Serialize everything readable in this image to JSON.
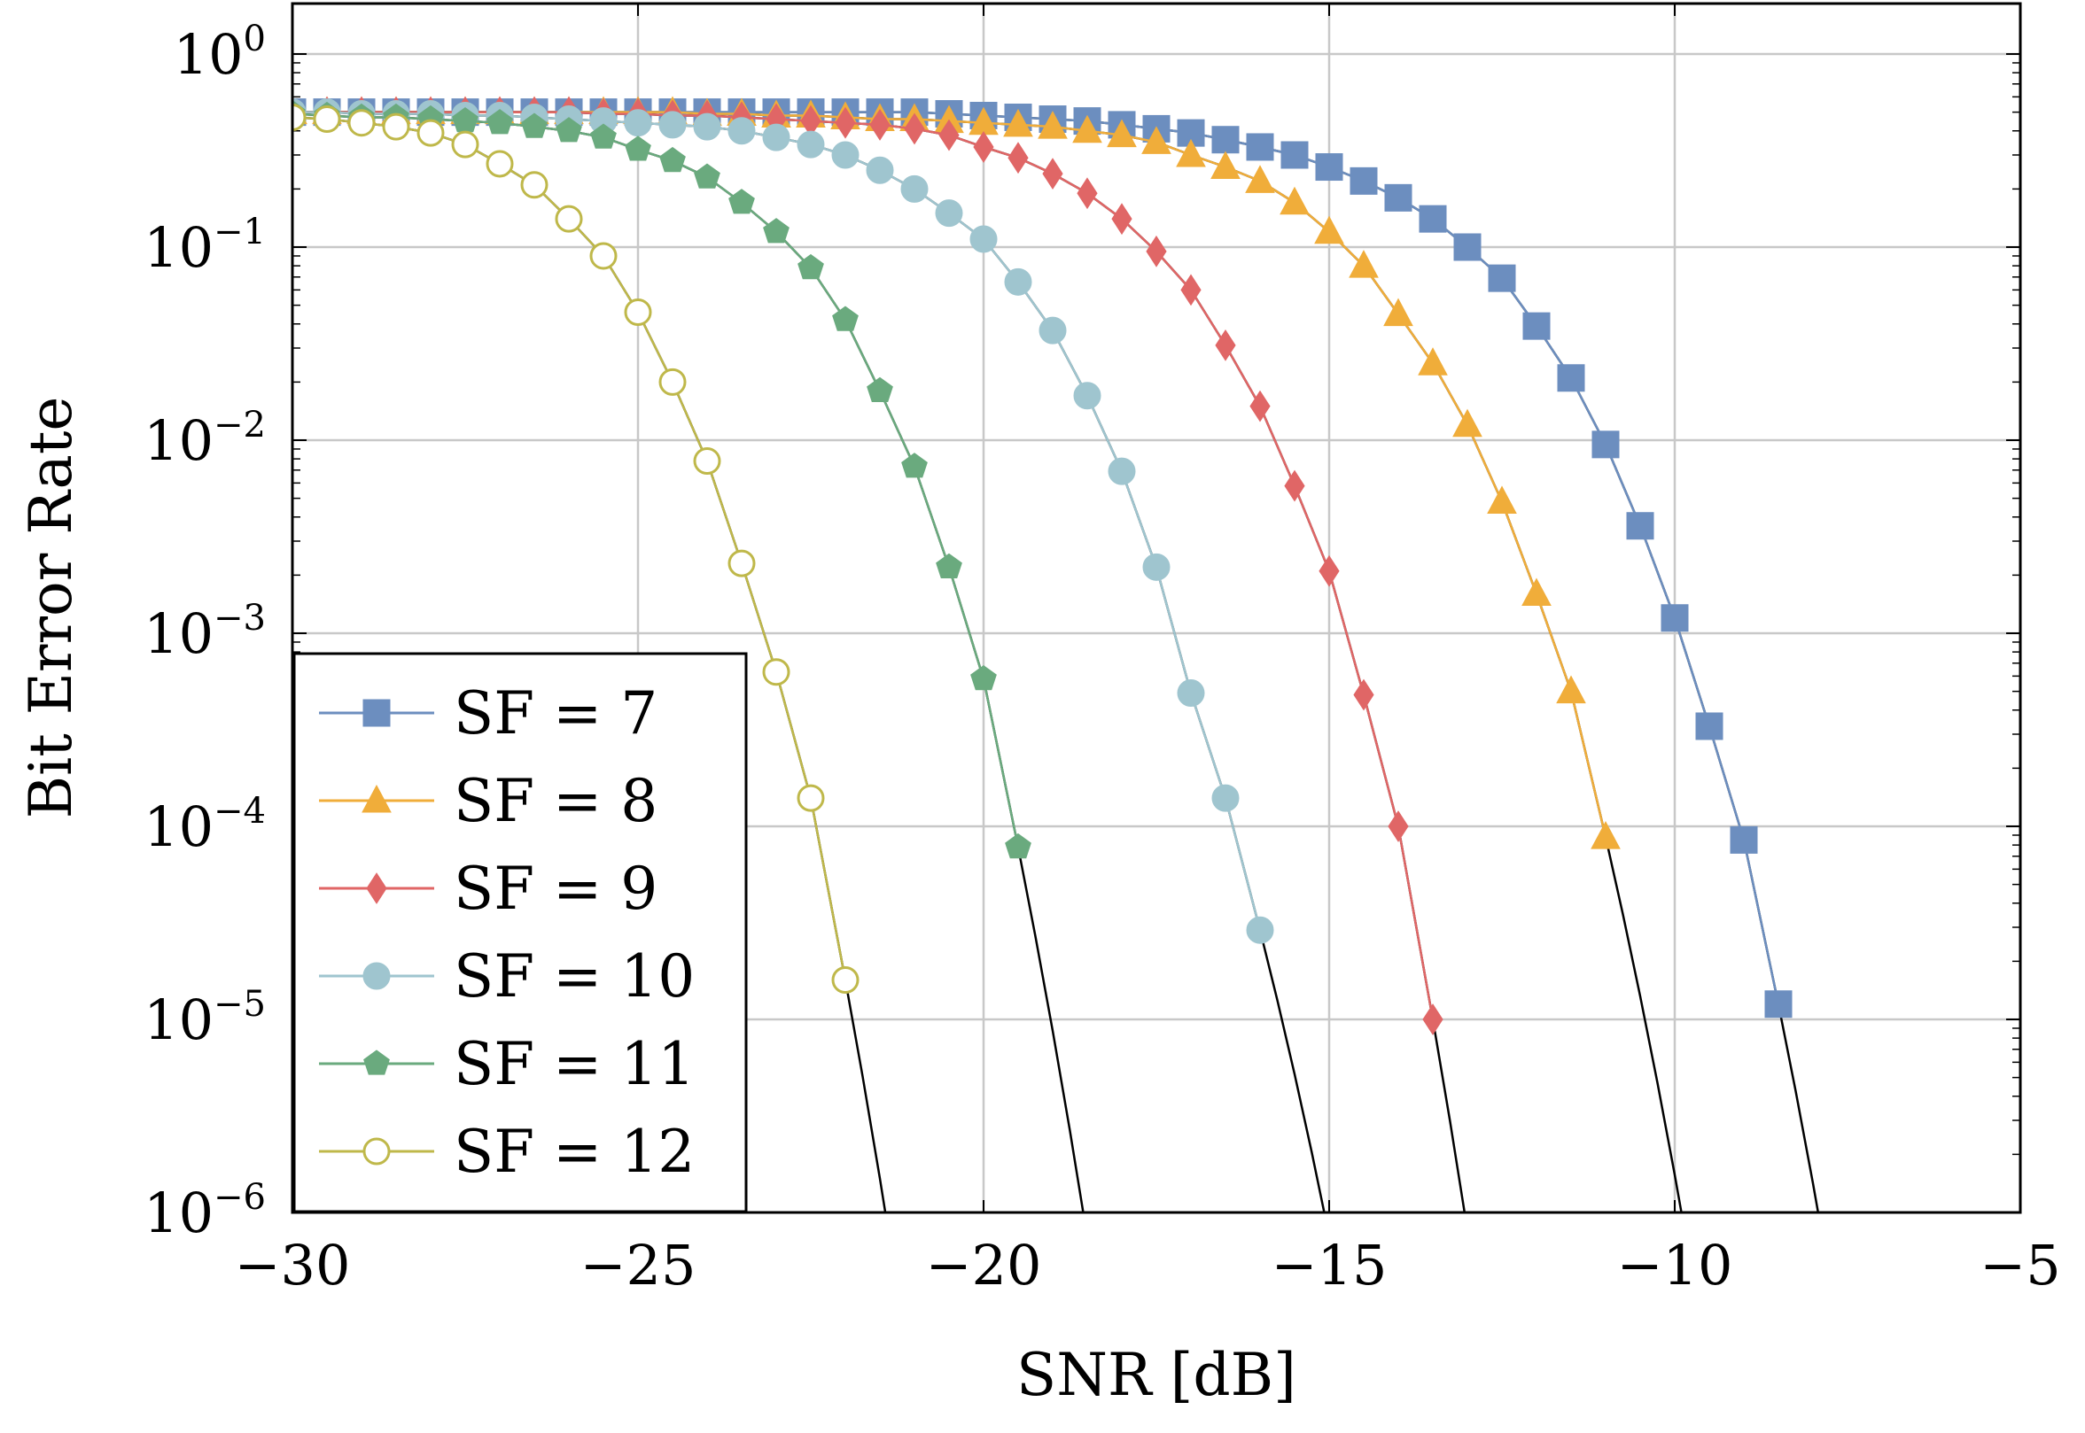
{
  "chart_data": {
    "type": "line",
    "title": "",
    "xlabel": "SNR [dB]",
    "ylabel": "Bit Error Rate",
    "xlim": [
      -30,
      -5
    ],
    "ylim": [
      1e-06,
      2
    ],
    "yscale": "log",
    "grid": true,
    "legend_position": "bottom-left",
    "x_ticks": [
      -30,
      -25,
      -20,
      -15,
      -10,
      -5
    ],
    "x_tick_labels": [
      "−30",
      "−25",
      "−20",
      "−15",
      "−10",
      "−5"
    ],
    "y_ticks": [
      {
        "base": "10",
        "exp": "0",
        "value": 1
      },
      {
        "base": "10",
        "exp": "−1",
        "value": 0.1
      },
      {
        "base": "10",
        "exp": "−2",
        "value": 0.01
      },
      {
        "base": "10",
        "exp": "−3",
        "value": 0.001
      },
      {
        "base": "10",
        "exp": "−4",
        "value": 0.0001
      },
      {
        "base": "10",
        "exp": "−5",
        "value": 1e-05
      },
      {
        "base": "10",
        "exp": "−6",
        "value": 1e-06
      }
    ],
    "series": [
      {
        "name": "SF = 7",
        "color": "#6c8ebf",
        "marker": "square",
        "x": [
          -30,
          -29.5,
          -29,
          -28.5,
          -28,
          -27.5,
          -27,
          -26.5,
          -26,
          -25.5,
          -25,
          -24.5,
          -24,
          -23.5,
          -23,
          -22.5,
          -22,
          -21.5,
          -21,
          -20.5,
          -20,
          -19.5,
          -19,
          -18.5,
          -18,
          -17.5,
          -17,
          -16.5,
          -16,
          -15.5,
          -15,
          -14.5,
          -14,
          -13.5,
          -13,
          -12.5,
          -12,
          -11.5,
          -11,
          -10.5,
          -10,
          -9.5,
          -9,
          -8.5,
          -8
        ],
        "y": [
          0.5,
          0.5,
          0.5,
          0.5,
          0.5,
          0.5,
          0.5,
          0.5,
          0.5,
          0.5,
          0.5,
          0.5,
          0.5,
          0.5,
          0.5,
          0.5,
          0.5,
          0.5,
          0.5,
          0.49,
          0.48,
          0.47,
          0.46,
          0.45,
          0.43,
          0.41,
          0.39,
          0.36,
          0.33,
          0.3,
          0.26,
          0.22,
          0.18,
          0.14,
          0.1,
          0.069,
          0.039,
          0.021,
          0.0095,
          0.0036,
          0.0012,
          0.00033,
          8.5e-05,
          1.2e-05,
          0
        ]
      },
      {
        "name": "SF = 8",
        "color": "#f0ad3a",
        "marker": "triangle",
        "x": [
          -30,
          -29.5,
          -29,
          -28.5,
          -28,
          -27.5,
          -27,
          -26.5,
          -26,
          -25.5,
          -25,
          -24.5,
          -24,
          -23.5,
          -23,
          -22.5,
          -22,
          -21.5,
          -21,
          -20.5,
          -20,
          -19.5,
          -19,
          -18.5,
          -18,
          -17.5,
          -17,
          -16.5,
          -16,
          -15.5,
          -15,
          -14.5,
          -14,
          -13.5,
          -13,
          -12.5,
          -12,
          -11.5,
          -11
        ],
        "y": [
          0.5,
          0.5,
          0.5,
          0.5,
          0.5,
          0.5,
          0.5,
          0.5,
          0.5,
          0.5,
          0.5,
          0.5,
          0.49,
          0.49,
          0.48,
          0.48,
          0.47,
          0.46,
          0.46,
          0.45,
          0.44,
          0.43,
          0.42,
          0.4,
          0.38,
          0.35,
          0.3,
          0.26,
          0.22,
          0.17,
          0.12,
          0.08,
          0.045,
          0.025,
          0.012,
          0.0048,
          0.0016,
          0.0005,
          8.8e-05
        ]
      },
      {
        "name": "SF = 9",
        "color": "#e06666",
        "marker": "diamond",
        "x": [
          -30,
          -29.5,
          -29,
          -28.5,
          -28,
          -27.5,
          -27,
          -26.5,
          -26,
          -25.5,
          -25,
          -24.5,
          -24,
          -23.5,
          -23,
          -22.5,
          -22,
          -21.5,
          -21,
          -20.5,
          -20,
          -19.5,
          -19,
          -18.5,
          -18,
          -17.5,
          -17,
          -16.5,
          -16,
          -15.5,
          -15,
          -14.5,
          -14,
          -13.5
        ],
        "y": [
          0.5,
          0.5,
          0.5,
          0.5,
          0.5,
          0.5,
          0.5,
          0.5,
          0.5,
          0.49,
          0.49,
          0.48,
          0.48,
          0.47,
          0.46,
          0.45,
          0.44,
          0.43,
          0.41,
          0.38,
          0.33,
          0.29,
          0.24,
          0.19,
          0.14,
          0.095,
          0.06,
          0.031,
          0.015,
          0.0058,
          0.0021,
          0.00048,
          0.0001,
          1e-05
        ]
      },
      {
        "name": "SF = 10",
        "color": "#9fc5cf",
        "marker": "circle",
        "x": [
          -30,
          -29.5,
          -29,
          -28.5,
          -28,
          -27.5,
          -27,
          -26.5,
          -26,
          -25.5,
          -25,
          -24.5,
          -24,
          -23.5,
          -23,
          -22.5,
          -22,
          -21.5,
          -21,
          -20.5,
          -20,
          -19.5,
          -19,
          -18.5,
          -18,
          -17.5,
          -17,
          -16.5,
          -16
        ],
        "y": [
          0.5,
          0.5,
          0.49,
          0.49,
          0.49,
          0.48,
          0.48,
          0.47,
          0.46,
          0.45,
          0.44,
          0.43,
          0.42,
          0.4,
          0.37,
          0.34,
          0.3,
          0.25,
          0.2,
          0.15,
          0.11,
          0.066,
          0.037,
          0.017,
          0.0069,
          0.0022,
          0.00049,
          0.00014,
          2.9e-05
        ]
      },
      {
        "name": "SF = 11",
        "color": "#6aaa7e",
        "marker": "pentagon",
        "x": [
          -30,
          -29.5,
          -29,
          -28.5,
          -28,
          -27.5,
          -27,
          -26.5,
          -26,
          -25.5,
          -25,
          -24.5,
          -24,
          -23.5,
          -23,
          -22.5,
          -22,
          -21.5,
          -21,
          -20.5,
          -20,
          -19.5
        ],
        "y": [
          0.49,
          0.48,
          0.47,
          0.47,
          0.46,
          0.45,
          0.44,
          0.42,
          0.4,
          0.37,
          0.32,
          0.28,
          0.23,
          0.17,
          0.12,
          0.078,
          0.042,
          0.018,
          0.0073,
          0.0022,
          0.00058,
          7.8e-05
        ]
      },
      {
        "name": "SF = 12",
        "color": "#bfb84a",
        "marker": "open-circle",
        "x": [
          -30,
          -29.5,
          -29,
          -28.5,
          -28,
          -27.5,
          -27,
          -26.5,
          -26,
          -25.5,
          -25,
          -24.5,
          -24,
          -23.5,
          -23,
          -22.5,
          -22
        ],
        "y": [
          0.47,
          0.46,
          0.44,
          0.42,
          0.39,
          0.34,
          0.27,
          0.21,
          0.14,
          0.09,
          0.046,
          0.02,
          0.0078,
          0.0023,
          0.00063,
          0.00014,
          1.6e-05
        ]
      }
    ]
  }
}
